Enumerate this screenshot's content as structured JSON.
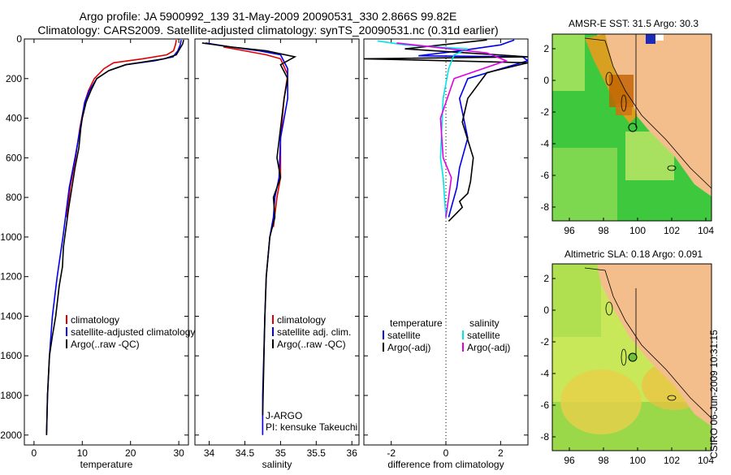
{
  "header": {
    "line1": "Argo profile: JA 5900992_139 31-May-2009 20090531_330 2.866S 99.82E",
    "line2": "Climatology: CARS2009. Satellite-adjusted climatology: synTS_20090531.nc (0.31d earlier)"
  },
  "stamp": "CSIRO 06-Jun-2009 10:31:15",
  "colors": {
    "climatology": "#e00000",
    "satellite": "#0000ee",
    "argo": "#000000",
    "salinity_satellite": "#00e5e5",
    "salinity_argo": "#e000e0"
  },
  "chart_data": [
    {
      "type": "line",
      "xlabel": "temperature",
      "ylabel": "",
      "xlim": [
        -2,
        32
      ],
      "ylim": [
        2050,
        0
      ],
      "xticks": [
        0,
        10,
        20,
        30
      ],
      "yticks": [
        0,
        200,
        400,
        600,
        800,
        1000,
        1200,
        1400,
        1600,
        1800,
        2000
      ],
      "legend": {
        "position": "bottom-right",
        "entries": [
          "climatology",
          "satellite-adjusted climatology",
          "Argo(..raw -QC)"
        ]
      },
      "series": [
        {
          "name": "climatology",
          "color": "red",
          "x": [
            29.5,
            29.3,
            28.9,
            27.5,
            22.5,
            16.5,
            14.5,
            12.5,
            11.3,
            10.5,
            9.5,
            8.6,
            7.5,
            6.8
          ],
          "y": [
            5,
            30,
            60,
            80,
            100,
            120,
            150,
            200,
            260,
            320,
            450,
            600,
            750,
            900
          ]
        },
        {
          "name": "satellite-adjusted climatology",
          "color": "blue",
          "x": [
            30.5,
            30.3,
            29.8,
            28.8,
            25,
            19,
            15.5,
            13,
            11.5,
            10.5,
            9.6,
            8.5,
            7.3,
            6,
            4.8,
            3.8,
            3.2,
            2.8,
            2.6
          ],
          "y": [
            5,
            30,
            60,
            90,
            110,
            130,
            160,
            200,
            260,
            320,
            450,
            600,
            750,
            1000,
            1200,
            1400,
            1600,
            1800,
            2000
          ]
        },
        {
          "name": "Argo(..raw -QC)",
          "color": "black",
          "x": [
            31,
            30.8,
            30.2,
            29.5,
            27,
            19,
            15.5,
            13,
            11.8,
            10.8,
            10,
            9.7,
            9.3,
            8.5,
            7.2,
            6.1,
            5.9,
            5.2,
            4.5,
            3.8,
            3.2,
            2.8,
            2.6
          ],
          "y": [
            5,
            25,
            50,
            80,
            100,
            130,
            160,
            200,
            260,
            320,
            400,
            450,
            550,
            650,
            850,
            1050,
            1150,
            1250,
            1400,
            1500,
            1600,
            1800,
            2000
          ]
        }
      ]
    },
    {
      "type": "line",
      "xlabel": "salinity",
      "ylabel": "",
      "xlim": [
        33.8,
        36.1
      ],
      "ylim": [
        2050,
        0
      ],
      "xticks": [
        34,
        34.5,
        35,
        35.5,
        36
      ],
      "legend": {
        "position": "bottom-right",
        "entries": [
          "climatology",
          "satellite adj. clim.",
          "Argo(..raw -QC)"
        ]
      },
      "annotation": [
        "J-ARGO",
        "PI: kensuke Takeuchi"
      ],
      "series": [
        {
          "name": "climatology",
          "color": "red",
          "x": [
            34.2,
            34.5,
            34.8,
            35.0,
            35.1,
            35.05,
            35.0,
            35.0,
            34.95,
            34.9
          ],
          "y": [
            40,
            60,
            80,
            100,
            180,
            300,
            500,
            700,
            800,
            950
          ]
        },
        {
          "name": "satellite adj. clim.",
          "color": "blue",
          "x": [
            33.95,
            34.3,
            34.7,
            35.0,
            35.1,
            35.1,
            35.0,
            34.98,
            34.92,
            34.9,
            34.85,
            34.8,
            34.78,
            34.75,
            34.75
          ],
          "y": [
            20,
            40,
            60,
            80,
            150,
            300,
            500,
            700,
            800,
            900,
            1000,
            1200,
            1400,
            1800,
            2000
          ]
        },
        {
          "name": "Argo(..raw -QC)",
          "color": "black",
          "x": [
            33.9,
            34.3,
            34.8,
            35.2,
            35.0,
            35.1,
            35.05,
            35.0,
            34.95,
            35.0,
            34.9,
            34.92,
            34.85,
            34.8,
            34.78,
            34.75
          ],
          "y": [
            20,
            40,
            60,
            90,
            130,
            200,
            300,
            450,
            600,
            700,
            800,
            900,
            1000,
            1200,
            1400,
            1900
          ]
        }
      ]
    },
    {
      "type": "line",
      "xlabel": "difference from climatology",
      "ylabel": "",
      "xlim": [
        -3,
        3
      ],
      "ylim": [
        2050,
        0
      ],
      "xticks": [
        -2,
        0,
        2
      ],
      "legend": {
        "position": "bottom",
        "entries": [
          "temperature",
          "satellite",
          "Argo(-adj)",
          "salinity",
          "satellite",
          "Argo(-adj)"
        ]
      },
      "series": [
        {
          "name": "temperature satellite",
          "color": "blue",
          "x": [
            2.5,
            2,
            0.5,
            -1,
            2.8,
            3,
            0.8,
            0.5,
            0.8,
            0.5,
            0.4,
            0.3,
            0.2,
            0.1
          ],
          "y": [
            5,
            30,
            60,
            85,
            90,
            110,
            200,
            300,
            500,
            650,
            750,
            800,
            850,
            900
          ]
        },
        {
          "name": "temperature Argo(-adj)",
          "color": "black",
          "x": [
            1.5,
            -1.5,
            3,
            -3,
            3,
            1.5,
            0.8,
            0.6,
            1,
            0.9,
            0.8,
            0.5,
            0.6,
            0.1
          ],
          "y": [
            5,
            50,
            90,
            100,
            120,
            170,
            300,
            420,
            600,
            720,
            780,
            820,
            850,
            920
          ]
        },
        {
          "name": "salinity satellite",
          "color": "cyan",
          "x": [
            -2.5,
            -1.5,
            0.8,
            0.3,
            0.1,
            -0.1,
            -0.2,
            -0.1,
            -0.05,
            0
          ],
          "y": [
            10,
            30,
            50,
            80,
            150,
            300,
            600,
            700,
            800,
            900
          ]
        },
        {
          "name": "salinity Argo(-adj)",
          "color": "magenta",
          "x": [
            -1.8,
            -0.5,
            1.5,
            2.2,
            0.3,
            -0.2,
            -0.1,
            0.2,
            0.1,
            0
          ],
          "y": [
            20,
            40,
            70,
            110,
            200,
            400,
            600,
            700,
            800,
            900
          ]
        }
      ]
    }
  ],
  "maps": [
    {
      "title": "AMSR-E SST: 31.5 Argo: 30.3",
      "xticks": [
        "96",
        "98",
        "100",
        "102",
        "104"
      ],
      "yticks": [
        "2",
        "0",
        "-2",
        "-4",
        "-6",
        "-8"
      ]
    },
    {
      "title": "Altimetric SLA: 0.18 Argo: 0.091",
      "xticks": [
        "96",
        "98",
        "100",
        "102",
        "104"
      ],
      "yticks": [
        "2",
        "0",
        "-2",
        "-4",
        "-6",
        "-8"
      ]
    }
  ]
}
